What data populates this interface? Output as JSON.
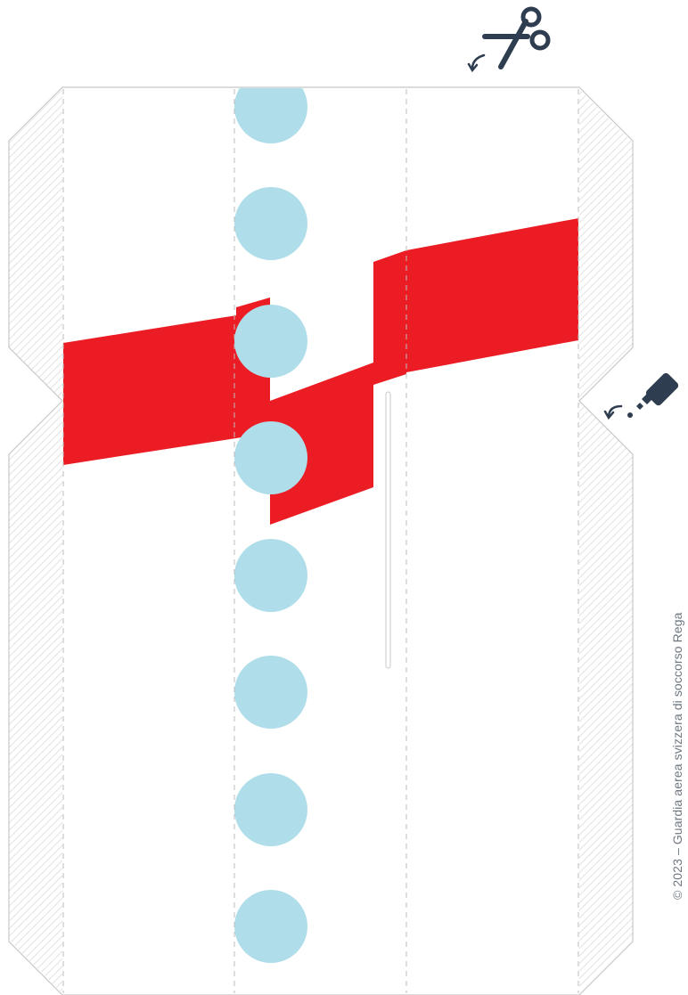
{
  "footer": {
    "copyright": "© 2023 – Guardia aerea svizzera di soccorso Rega"
  },
  "icons": {
    "scissors": "scissors-icon",
    "glue": "glue-bottle-icon"
  },
  "colors": {
    "stripe_red": "#ec1c24",
    "window_blue": "#afdeea",
    "outline_gray": "#c8c8c8",
    "fold_line": "#bdbdbd",
    "hatch": "#e4e4e4",
    "icon_dark": "#2e3d4f"
  },
  "windows": {
    "count": 8
  }
}
